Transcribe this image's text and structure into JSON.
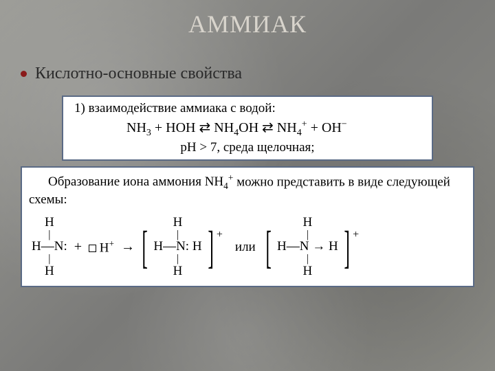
{
  "title": "АММИАК",
  "bullet": "Кислотно-основные свойства",
  "box1": {
    "line1": "1) взаимодействие аммиака с водой:",
    "eq_parts": {
      "p1": "NH",
      "s1": "3",
      "p2": " + HOH ⇄ NH",
      "s2": "4",
      "p3": "OH ⇄ NH",
      "s3": "4",
      "sup1": "+",
      "p4": " + OH",
      "sup2": "−"
    },
    "line3": "pH > 7, среда щелочная;"
  },
  "box2": {
    "intro_parts": {
      "p1": "Образование иона аммония NH",
      "s1": "4",
      "sup1": "+",
      "p2": " можно представить в виде следующей схемы:"
    },
    "atoms": {
      "H": "H",
      "N": "N"
    },
    "ops": {
      "plus": "+",
      "arrow": "→",
      "ili": "или",
      "Hplus": "H",
      "Hplus_sup": "+"
    },
    "charge": "+"
  },
  "colors": {
    "title": "#d8d4cc",
    "bullet": "#8a1a1a",
    "text": "#2a2a2a",
    "box_border": "#5a6a85",
    "box_bg": "#ffffff"
  }
}
